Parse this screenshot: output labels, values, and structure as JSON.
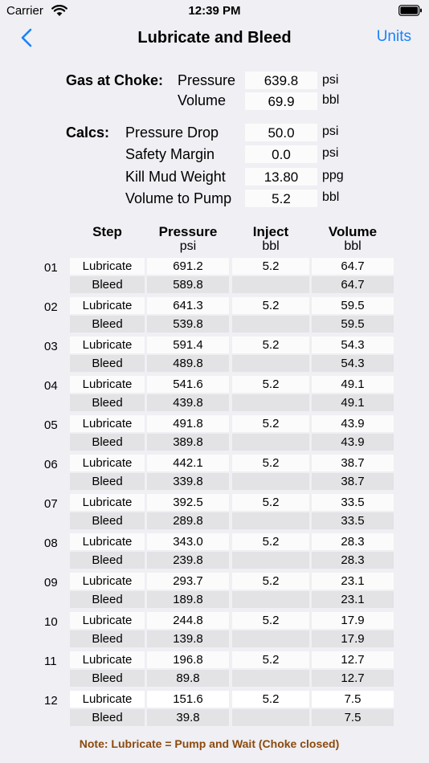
{
  "status": {
    "carrier": "Carrier",
    "time": "12:39 PM"
  },
  "nav": {
    "title": "Lubricate and Bleed",
    "units_label": "Units"
  },
  "gas": {
    "label": "Gas at Choke:",
    "pressure_label": "Pressure",
    "pressure": "639.8",
    "pressure_unit": "psi",
    "volume_label": "Volume",
    "volume": "69.9",
    "volume_unit": "bbl"
  },
  "calcs": {
    "label": "Calcs:",
    "items": [
      {
        "label": "Pressure Drop",
        "value": "50.0",
        "unit": "psi"
      },
      {
        "label": "Safety Margin",
        "value": "0.0",
        "unit": "psi"
      },
      {
        "label": "Kill Mud Weight",
        "value": "13.80",
        "unit": "ppg"
      },
      {
        "label": "Volume to Pump",
        "value": "5.2",
        "unit": "bbl"
      }
    ]
  },
  "table": {
    "headers": {
      "step": "Step",
      "pressure": "Pressure",
      "pressure_unit": "psi",
      "inject": "Inject",
      "inject_unit": "bbl",
      "volume": "Volume",
      "volume_unit": "bbl"
    },
    "rows": [
      {
        "num": "01",
        "lub": "Lubricate",
        "lub_p": "691.2",
        "inject": "5.2",
        "lub_v": "64.7",
        "bleed": "Bleed",
        "bleed_p": "589.8",
        "bleed_v": "64.7"
      },
      {
        "num": "02",
        "lub": "Lubricate",
        "lub_p": "641.3",
        "inject": "5.2",
        "lub_v": "59.5",
        "bleed": "Bleed",
        "bleed_p": "539.8",
        "bleed_v": "59.5"
      },
      {
        "num": "03",
        "lub": "Lubricate",
        "lub_p": "591.4",
        "inject": "5.2",
        "lub_v": "54.3",
        "bleed": "Bleed",
        "bleed_p": "489.8",
        "bleed_v": "54.3"
      },
      {
        "num": "04",
        "lub": "Lubricate",
        "lub_p": "541.6",
        "inject": "5.2",
        "lub_v": "49.1",
        "bleed": "Bleed",
        "bleed_p": "439.8",
        "bleed_v": "49.1"
      },
      {
        "num": "05",
        "lub": "Lubricate",
        "lub_p": "491.8",
        "inject": "5.2",
        "lub_v": "43.9",
        "bleed": "Bleed",
        "bleed_p": "389.8",
        "bleed_v": "43.9"
      },
      {
        "num": "06",
        "lub": "Lubricate",
        "lub_p": "442.1",
        "inject": "5.2",
        "lub_v": "38.7",
        "bleed": "Bleed",
        "bleed_p": "339.8",
        "bleed_v": "38.7"
      },
      {
        "num": "07",
        "lub": "Lubricate",
        "lub_p": "392.5",
        "inject": "5.2",
        "lub_v": "33.5",
        "bleed": "Bleed",
        "bleed_p": "289.8",
        "bleed_v": "33.5"
      },
      {
        "num": "08",
        "lub": "Lubricate",
        "lub_p": "343.0",
        "inject": "5.2",
        "lub_v": "28.3",
        "bleed": "Bleed",
        "bleed_p": "239.8",
        "bleed_v": "28.3"
      },
      {
        "num": "09",
        "lub": "Lubricate",
        "lub_p": "293.7",
        "inject": "5.2",
        "lub_v": "23.1",
        "bleed": "Bleed",
        "bleed_p": "189.8",
        "bleed_v": "23.1"
      },
      {
        "num": "10",
        "lub": "Lubricate",
        "lub_p": "244.8",
        "inject": "5.2",
        "lub_v": "17.9",
        "bleed": "Bleed",
        "bleed_p": "139.8",
        "bleed_v": "17.9"
      },
      {
        "num": "11",
        "lub": "Lubricate",
        "lub_p": "196.8",
        "inject": "5.2",
        "lub_v": "12.7",
        "bleed": "Bleed",
        "bleed_p": "89.8",
        "bleed_v": "12.7"
      },
      {
        "num": "12",
        "lub": "Lubricate",
        "lub_p": "151.6",
        "inject": "5.2",
        "lub_v": "7.5",
        "bleed": "Bleed",
        "bleed_p": "39.8",
        "bleed_v": "7.5"
      }
    ]
  },
  "note": "Note: Lubricate = Pump and Wait (Choke closed)",
  "colors": {
    "accent": "#1a82fb",
    "note": "#8b4a0c",
    "background": "#efeff4"
  }
}
